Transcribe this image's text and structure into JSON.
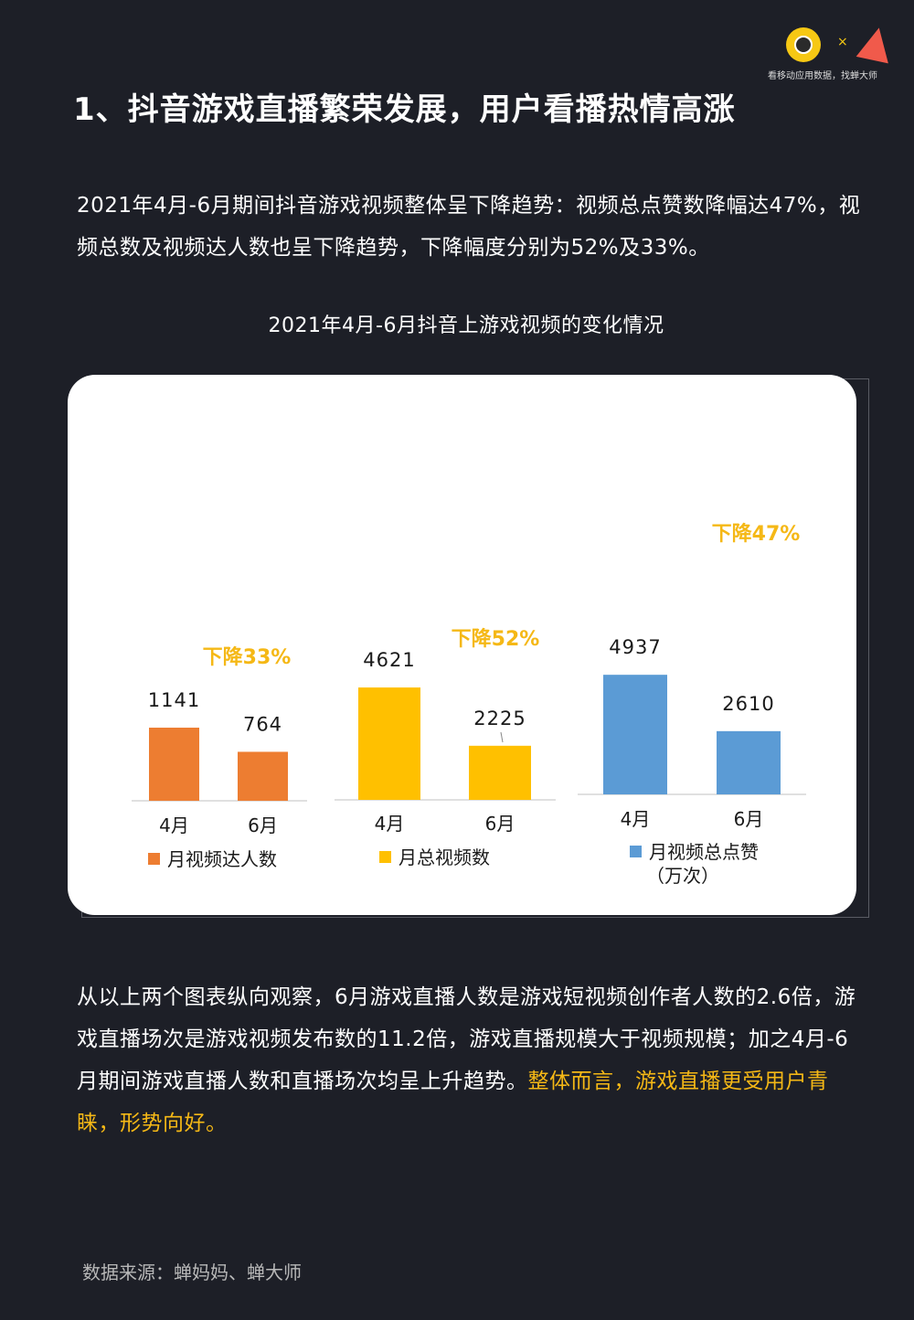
{
  "header": {
    "caption": "看移动应用数据，找蝉大师",
    "separator": "×"
  },
  "title": "1、抖音游戏直播繁荣发展，用户看播热情高涨",
  "intro": "2021年4月-6月期间抖音游戏视频整体呈下降趋势：视频总点赞数降幅达47%，视频总数及视频达人数也呈下降趋势，下降幅度分别为52%及33%。",
  "conclusion": {
    "normal": "从以上两个图表纵向观察，6月游戏直播人数是游戏短视频创作者人数的2.6倍，游戏直播场次是游戏视频发布数的11.2倍，游戏直播规模大于视频规模；加之4月-6月期间游戏直播人数和直播场次均呈上升趋势。",
    "highlight": "整体而言，游戏直播更受用户青睐，形势向好。"
  },
  "source": "数据来源：蝉妈妈、蝉大师",
  "colors": {
    "background": "#1d1f27",
    "highlight": "#f5b816",
    "orange": "#ed7d31",
    "yellow": "#ffc000",
    "blue": "#5b9bd5",
    "drop_label": "#f5b816"
  },
  "chart_data": {
    "type": "bar",
    "title": "2021年4月-6月抖音上游戏视频的变化情况",
    "groups": [
      {
        "name": "月视频达人数",
        "categories": [
          "4月",
          "6月"
        ],
        "values": [
          1141,
          764
        ],
        "labels": [
          "1141",
          "764"
        ],
        "change": "下降33%",
        "color": "#ed7d31"
      },
      {
        "name": "月总视频数",
        "categories": [
          "4月",
          "6月"
        ],
        "values": [
          4621,
          2225
        ],
        "labels": [
          "4621",
          "2225"
        ],
        "change": "下降52%",
        "color": "#ffc000"
      },
      {
        "name": "月视频总点赞",
        "name_line2": "（万次）",
        "categories": [
          "4月",
          "6月"
        ],
        "values": [
          4937,
          2610
        ],
        "labels": [
          "4937",
          "2610"
        ],
        "change": "下降47%",
        "color": "#5b9bd5"
      }
    ],
    "legend_placement": "bottom",
    "grid": false
  }
}
